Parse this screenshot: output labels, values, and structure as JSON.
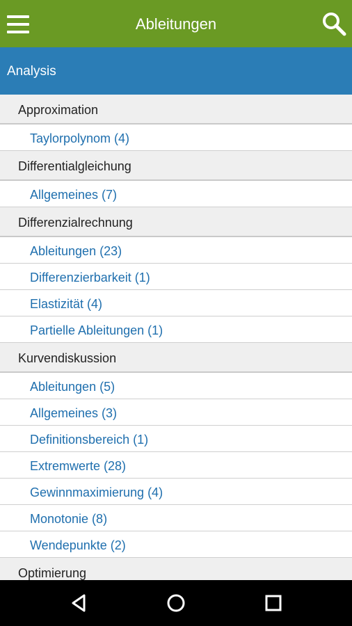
{
  "appbar": {
    "title": "Ableitungen"
  },
  "section": {
    "title": "Analysis"
  },
  "categories": [
    {
      "label": "Approximation",
      "items": [
        "Taylorpolynom (4)"
      ]
    },
    {
      "label": "Differentialgleichung",
      "items": [
        "Allgemeines (7)"
      ]
    },
    {
      "label": "Differenzialrechnung",
      "items": [
        "Ableitungen (23)",
        "Differenzierbarkeit (1)",
        "Elastizität (4)",
        "Partielle Ableitungen (1)"
      ]
    },
    {
      "label": "Kurvendiskussion",
      "items": [
        "Ableitungen (5)",
        "Allgemeines (3)",
        "Definitionsbereich (1)",
        "Extremwerte (28)",
        "Gewinnmaximierung (4)",
        "Monotonie (8)",
        "Wendepunkte (2)"
      ]
    },
    {
      "label": "Optimierung",
      "items": []
    }
  ],
  "colors": {
    "appbar": "#6a9a24",
    "section_header": "#2b7db6",
    "link": "#1f6fae"
  },
  "icons": {
    "menu": "hamburger-menu-icon",
    "search": "search-icon",
    "back": "back-triangle-icon",
    "home": "home-circle-icon",
    "recents": "recents-square-icon"
  }
}
